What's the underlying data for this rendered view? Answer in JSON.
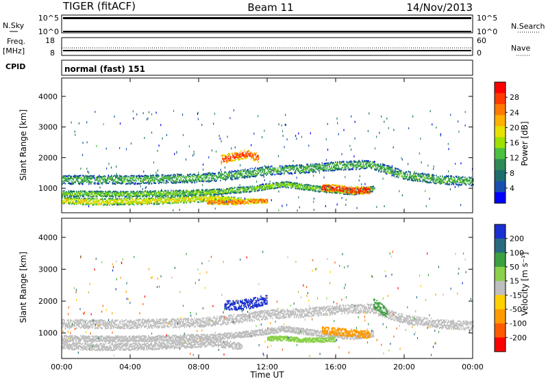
{
  "header": {
    "station": "TIGER (fitACF)",
    "beam": "Beam 11",
    "date": "14/Nov/2013"
  },
  "strips": {
    "nsky": {
      "label": "N.Sky",
      "ticks_left": [
        "10^5",
        "10^0"
      ],
      "ticks_right": [
        "10^5",
        "10^0"
      ],
      "right_label": "N.Search"
    },
    "freq": {
      "label_line1": "Freq.",
      "label_line2": "[MHz]",
      "ticks_left": [
        "18",
        "8"
      ],
      "ticks_right": [
        "60",
        "0"
      ],
      "right_label": "Nave"
    },
    "cpid": {
      "label": "CPID",
      "value": "normal (fast) 151"
    }
  },
  "colorbars": {
    "power": {
      "label": "Power [dB]",
      "ticks": [
        "28",
        "24",
        "20",
        "16",
        "12",
        "8",
        "4"
      ],
      "colors": [
        "#ff0000",
        "#ff3b00",
        "#ff7a00",
        "#ffb000",
        "#e8e000",
        "#9ee000",
        "#4cc040",
        "#2e8b57",
        "#1e6e6e",
        "#1a4fb0",
        "#0000ff"
      ]
    },
    "velocity": {
      "label": "Velocity [m s⁻¹]",
      "ticks": [
        "200",
        "100",
        "50",
        "15",
        "-15",
        "-50",
        "-100",
        "-200"
      ],
      "colors": [
        "#1a2fd0",
        "#2a6a80",
        "#3aa040",
        "#8ad04a",
        "#bebebe",
        "#ffd000",
        "#ff9a00",
        "#ff5a00",
        "#ff0000"
      ]
    }
  },
  "chart_data": [
    {
      "type": "heatmap",
      "panel": "power",
      "ylabel": "Slant Range [km]",
      "yticks": [
        "4000",
        "3000",
        "2000",
        "1000"
      ],
      "ylim": [
        200,
        4600
      ],
      "xlim": [
        "00:00",
        "24:00"
      ],
      "bands": [
        {
          "t": [
            0,
            4,
            8,
            10,
            12,
            14,
            16,
            18,
            20,
            22,
            24
          ],
          "r": [
            1300,
            1300,
            1350,
            1450,
            1600,
            1650,
            1750,
            1800,
            1450,
            1300,
            1250
          ],
          "width": 180,
          "value": 12
        },
        {
          "t": [
            0,
            3,
            6,
            9,
            11,
            13,
            15,
            17,
            18.2
          ],
          "r": [
            850,
            830,
            850,
            900,
            1000,
            1150,
            1000,
            900,
            1000
          ],
          "width": 120,
          "value": 14
        },
        {
          "t": [
            0,
            2,
            5,
            7,
            9,
            10.5
          ],
          "r": [
            620,
            580,
            600,
            650,
            700,
            600
          ],
          "width": 140,
          "value": 18
        },
        {
          "t": [
            9.3,
            10,
            10.8,
            11.5
          ],
          "r": [
            1950,
            2050,
            2150,
            2000
          ],
          "width": 180,
          "value": 26
        },
        {
          "t": [
            15.2,
            16.2,
            17.2,
            18.0
          ],
          "r": [
            1050,
            1000,
            950,
            950
          ],
          "width": 150,
          "value": 28
        },
        {
          "t": [
            8.5,
            10,
            11,
            12
          ],
          "r": [
            580,
            560,
            600,
            620
          ],
          "width": 100,
          "value": 24
        }
      ]
    },
    {
      "type": "heatmap",
      "panel": "velocity",
      "ylabel": "Slant Range [km]",
      "xlabel": "Time UT",
      "xticks": [
        "00:00",
        "04:00",
        "08:00",
        "12:00",
        "16:00",
        "20:00",
        "00:00"
      ],
      "yticks": [
        "4000",
        "3000",
        "2000",
        "1000"
      ],
      "ylim": [
        200,
        4600
      ],
      "xlim": [
        "00:00",
        "24:00"
      ],
      "bands": [
        {
          "t": [
            0,
            4,
            8,
            10,
            12,
            14,
            16,
            18,
            20,
            22,
            24
          ],
          "r": [
            1300,
            1300,
            1350,
            1450,
            1600,
            1650,
            1750,
            1800,
            1450,
            1300,
            1250
          ],
          "width": 180,
          "value": 0
        },
        {
          "t": [
            0,
            3,
            6,
            9,
            11,
            13,
            15,
            17,
            18.2
          ],
          "r": [
            850,
            830,
            850,
            900,
            1000,
            1150,
            1000,
            900,
            1000
          ],
          "width": 120,
          "value": 0
        },
        {
          "t": [
            0,
            2,
            5,
            7,
            9,
            10.5
          ],
          "r": [
            620,
            580,
            600,
            650,
            700,
            600
          ],
          "width": 140,
          "value": 0
        },
        {
          "t": [
            9.5,
            10.5,
            11.5,
            12.0
          ],
          "r": [
            1900,
            1900,
            2000,
            2100
          ],
          "width": 200,
          "value": 220
        },
        {
          "t": [
            15.2,
            16.2,
            17.2,
            18.0
          ],
          "r": [
            1100,
            1050,
            1000,
            950
          ],
          "width": 150,
          "value": -80
        },
        {
          "t": [
            12,
            13,
            14,
            15,
            16
          ],
          "r": [
            850,
            850,
            800,
            800,
            820
          ],
          "width": 90,
          "value": 40
        },
        {
          "t": [
            18.2,
            18.6,
            19.0
          ],
          "r": [
            1950,
            1800,
            1650
          ],
          "width": 200,
          "value": 60
        }
      ]
    }
  ]
}
